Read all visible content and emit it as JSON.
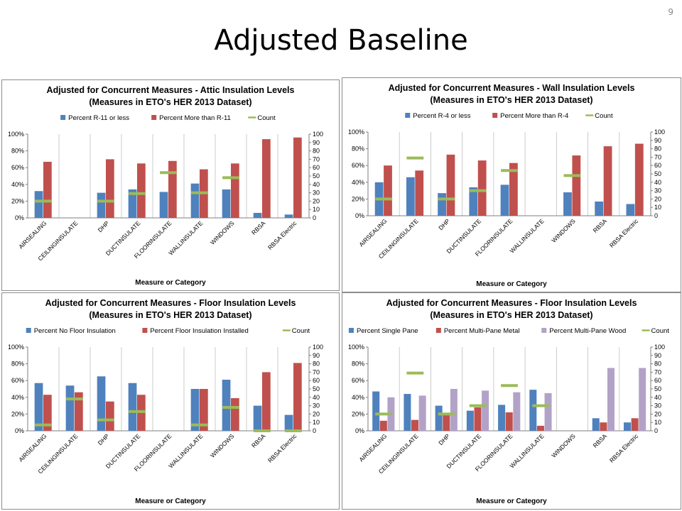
{
  "slide": {
    "title": "Adjusted Baseline",
    "page_number": "9"
  },
  "chart_data": [
    {
      "type": "bar",
      "title": "Adjusted for Concurrent Measures - Attic Insulation Levels",
      "subtitle": "(Measures in ETO's HER 2013 Dataset)",
      "xlabel": "Measure or Category",
      "ylim": [
        0,
        100
      ],
      "y2lim": [
        0,
        100
      ],
      "yticks": [
        "0%",
        "20%",
        "40%",
        "60%",
        "80%",
        "100%"
      ],
      "y2ticks": [
        "0",
        "10",
        "20",
        "30",
        "40",
        "50",
        "60",
        "70",
        "80",
        "90",
        "100"
      ],
      "legend_position": "top",
      "categories": [
        "AIRSEALING",
        "CEILINGINSULATE",
        "DHP",
        "DUCTINSULATE",
        "FLOORINSULATE",
        "WALLINSULATE",
        "WINDOWS",
        "RBSA",
        "RBSA Electric"
      ],
      "series": [
        {
          "name": "Percent R-11 or less",
          "color": "#4f81bd",
          "values": [
            32,
            null,
            30,
            34,
            31,
            41,
            34,
            6,
            4
          ]
        },
        {
          "name": "Percent More than R-11",
          "color": "#c0504d",
          "values": [
            67,
            null,
            70,
            65,
            68,
            58,
            65,
            94,
            96
          ]
        }
      ],
      "count": {
        "name": "Count",
        "color": "#9bbb59",
        "values": [
          20,
          null,
          20,
          29,
          54,
          30,
          48,
          null,
          null
        ]
      }
    },
    {
      "type": "bar",
      "title": "Adjusted for Concurrent Measures - Wall Insulation Levels",
      "subtitle": "(Measures in ETO's HER 2013 Dataset)",
      "xlabel": "Measure or Category",
      "ylim": [
        0,
        100
      ],
      "y2lim": [
        0,
        100
      ],
      "yticks": [
        "0%",
        "20%",
        "40%",
        "60%",
        "80%",
        "100%"
      ],
      "y2ticks": [
        "0",
        "10",
        "20",
        "30",
        "40",
        "50",
        "60",
        "70",
        "80",
        "90",
        "100"
      ],
      "legend_position": "top",
      "categories": [
        "AIRSEALING",
        "CEILINGINSULATE",
        "DHP",
        "DUCTINSULATE",
        "FLOORINSULATE",
        "WALLINSULATE",
        "WINDOWS",
        "RBSA",
        "RBSA Electric"
      ],
      "series": [
        {
          "name": "Percent R-4 or less",
          "color": "#4f81bd",
          "values": [
            40,
            46,
            27,
            34,
            37,
            null,
            28,
            17,
            14
          ]
        },
        {
          "name": "Percent More than R-4",
          "color": "#c0504d",
          "values": [
            60,
            54,
            73,
            66,
            63,
            null,
            72,
            83,
            86
          ]
        }
      ],
      "count": {
        "name": "Count",
        "color": "#9bbb59",
        "values": [
          20,
          69,
          20,
          30,
          54,
          null,
          48,
          null,
          null
        ]
      }
    },
    {
      "type": "bar",
      "title": "Adjusted for Concurrent Measures - Floor Insulation Levels",
      "subtitle": "(Measures in ETO's HER 2013 Dataset)",
      "xlabel": "Measure or Category",
      "ylim": [
        0,
        100
      ],
      "y2lim": [
        0,
        100
      ],
      "yticks": [
        "0%",
        "20%",
        "40%",
        "60%",
        "80%",
        "100%"
      ],
      "y2ticks": [
        "0",
        "10",
        "20",
        "30",
        "40",
        "50",
        "60",
        "70",
        "80",
        "90",
        "100"
      ],
      "legend_position": "top",
      "categories": [
        "AIRSEALING",
        "CEILINGINSULATE",
        "DHP",
        "DUCTINSULATE",
        "FLOORINSULATE",
        "WALLINSULATE",
        "WINDOWS",
        "RBSA",
        "RBSA Electric"
      ],
      "series": [
        {
          "name": "Percent No Floor Insulation",
          "color": "#4f81bd",
          "values": [
            57,
            54,
            65,
            57,
            null,
            50,
            61,
            30,
            19
          ]
        },
        {
          "name": "Percent Floor Insulation Installed",
          "color": "#c0504d",
          "values": [
            43,
            46,
            35,
            43,
            null,
            50,
            39,
            70,
            81
          ]
        }
      ],
      "count": {
        "name": "Count",
        "color": "#9bbb59",
        "values": [
          7,
          38,
          13,
          23,
          null,
          7,
          28,
          0,
          0
        ]
      }
    },
    {
      "type": "bar",
      "title": "Adjusted for Concurrent Measures - Floor Insulation Levels",
      "subtitle": "(Measures in ETO's HER 2013 Dataset)",
      "xlabel": "Measure or Category",
      "ylim": [
        0,
        100
      ],
      "y2lim": [
        0,
        100
      ],
      "yticks": [
        "0%",
        "20%",
        "40%",
        "60%",
        "80%",
        "100%"
      ],
      "y2ticks": [
        "0",
        "10",
        "20",
        "30",
        "40",
        "50",
        "60",
        "70",
        "80",
        "90",
        "100"
      ],
      "legend_position": "top",
      "categories": [
        "AIRSEALING",
        "CEILINGINSULATE",
        "DHP",
        "DUCTINSULATE",
        "FLOORINSULATE",
        "WALLINSULATE",
        "WINDOWS",
        "RBSA",
        "RBSA Electric"
      ],
      "series": [
        {
          "name": "Percent Single Pane",
          "color": "#4f81bd",
          "values": [
            47,
            44,
            30,
            24,
            31,
            49,
            null,
            15,
            10
          ]
        },
        {
          "name": "Percent Multi-Pane Metal",
          "color": "#c0504d",
          "values": [
            12,
            13,
            19,
            28,
            22,
            6,
            null,
            10,
            15
          ]
        },
        {
          "name": "Percent Multi-Pane Wood",
          "color": "#b3a2c7",
          "values": [
            40,
            42,
            50,
            48,
            46,
            45,
            null,
            75,
            75
          ]
        }
      ],
      "count": {
        "name": "Count",
        "color": "#9bbb59",
        "values": [
          20,
          69,
          20,
          30,
          54,
          30,
          null,
          null,
          null
        ]
      }
    }
  ]
}
